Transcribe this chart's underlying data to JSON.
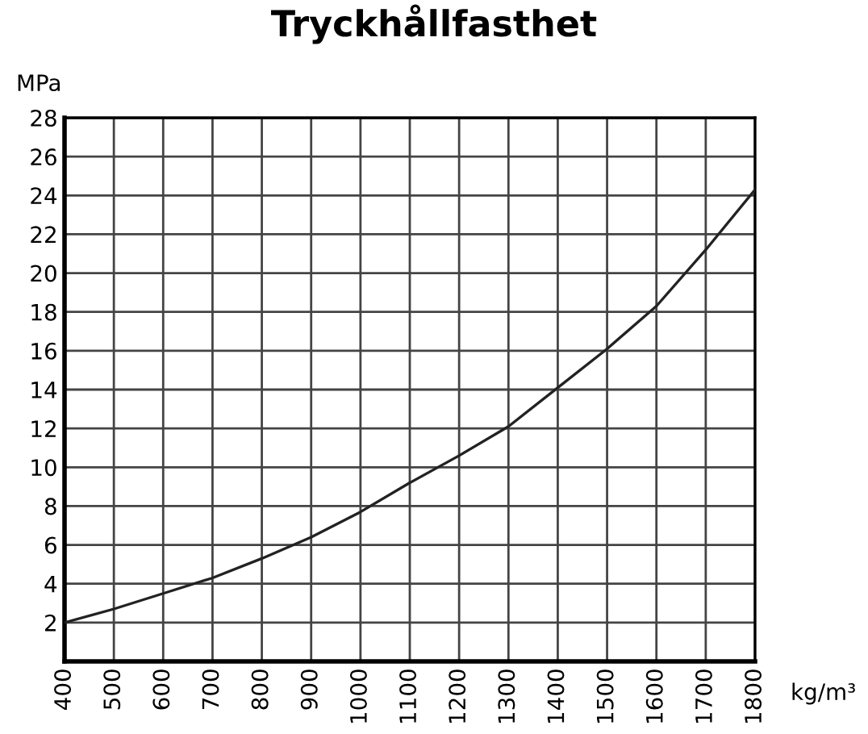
{
  "chart_data": {
    "type": "line",
    "title": "Tryckhållfasthet",
    "xlabel": "kg/m³",
    "ylabel": "MPa",
    "x": [
      400,
      500,
      600,
      700,
      800,
      900,
      1000,
      1100,
      1200,
      1300,
      1400,
      1500,
      1600,
      1700,
      1800
    ],
    "series": [
      {
        "color": "#222222",
        "values": [
          2.0,
          2.7,
          3.5,
          4.3,
          5.3,
          6.4,
          7.7,
          9.2,
          10.6,
          12.1,
          14.1,
          16.1,
          18.3,
          21.2,
          24.3
        ]
      }
    ],
    "xlim": [
      400,
      1800
    ],
    "xticks": [
      400,
      500,
      600,
      700,
      800,
      900,
      1000,
      1100,
      1200,
      1300,
      1400,
      1500,
      1600,
      1700,
      1800
    ],
    "ylim": [
      0,
      28
    ],
    "yticks": [
      2,
      4,
      6,
      8,
      10,
      12,
      14,
      16,
      18,
      20,
      22,
      24,
      26,
      28
    ],
    "grid": true,
    "marker": "none",
    "line_style": "solid",
    "legend": false
  }
}
